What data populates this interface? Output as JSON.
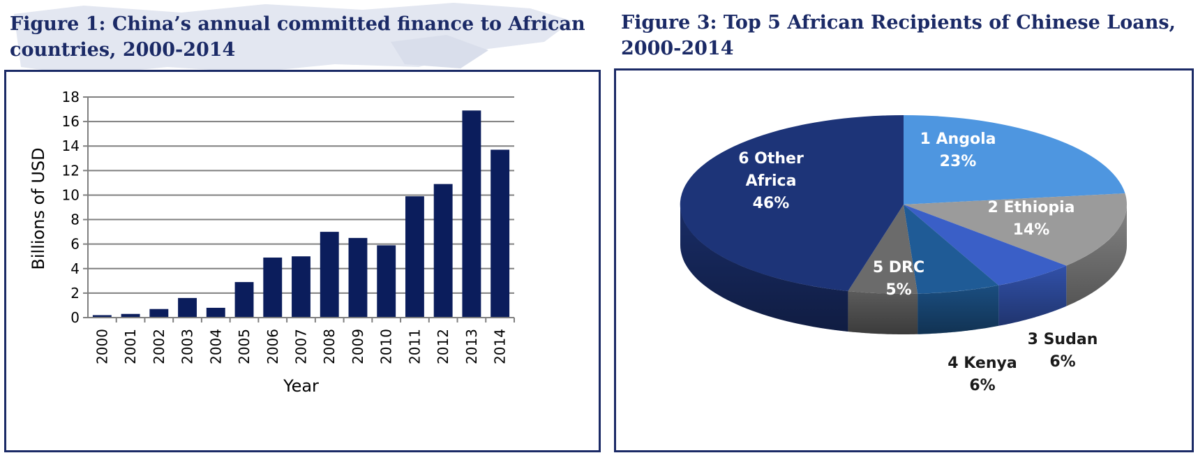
{
  "figures": {
    "fig1": {
      "title_line1": "Figure 1: China’s annual committed finance to African",
      "title_line2": "countries, 2000-2014"
    },
    "fig3": {
      "title_line1": "Figure 3: Top 5 African Recipients of Chinese Loans,",
      "title_line2": "2000-2014"
    }
  },
  "chart_data": [
    {
      "type": "bar",
      "categories": [
        "2000",
        "2001",
        "2002",
        "2003",
        "2004",
        "2005",
        "2006",
        "2007",
        "2008",
        "2009",
        "2010",
        "2011",
        "2012",
        "2013",
        "2014"
      ],
      "values": [
        0.2,
        0.3,
        0.7,
        1.6,
        0.8,
        2.9,
        4.9,
        5.0,
        7.0,
        6.5,
        5.9,
        9.9,
        10.9,
        16.9,
        13.7
      ],
      "xlabel": "Year",
      "ylabel": "Billions of USD",
      "ylim": [
        0,
        18
      ],
      "yticks": [
        0,
        2,
        4,
        6,
        8,
        10,
        12,
        14,
        16,
        18
      ],
      "grid": true,
      "colors": {
        "bar": "#0b1d5c",
        "grid": "#7f7f7f"
      }
    },
    {
      "type": "pie",
      "style": "3d",
      "slices": [
        {
          "label_num": "1 Angola",
          "pct_text": "23%",
          "value": 23,
          "color": "#4e96e0"
        },
        {
          "label_num": "2 Ethiopia",
          "pct_text": "14%",
          "value": 14,
          "color": "#9b9b9b"
        },
        {
          "label_num": "3 Sudan",
          "pct_text": "6%",
          "value": 6,
          "color": "#3a5fc7"
        },
        {
          "label_num": "4 Kenya",
          "pct_text": "6%",
          "value": 6,
          "color": "#1f5b96"
        },
        {
          "label_num": "5 DRC",
          "pct_text": "5%",
          "value": 5,
          "color": "#6b6b6b"
        },
        {
          "label_num": "6 Other",
          "label_line2": "Africa",
          "pct_text": "46%",
          "value": 46,
          "color": "#1d3478"
        }
      ]
    }
  ]
}
